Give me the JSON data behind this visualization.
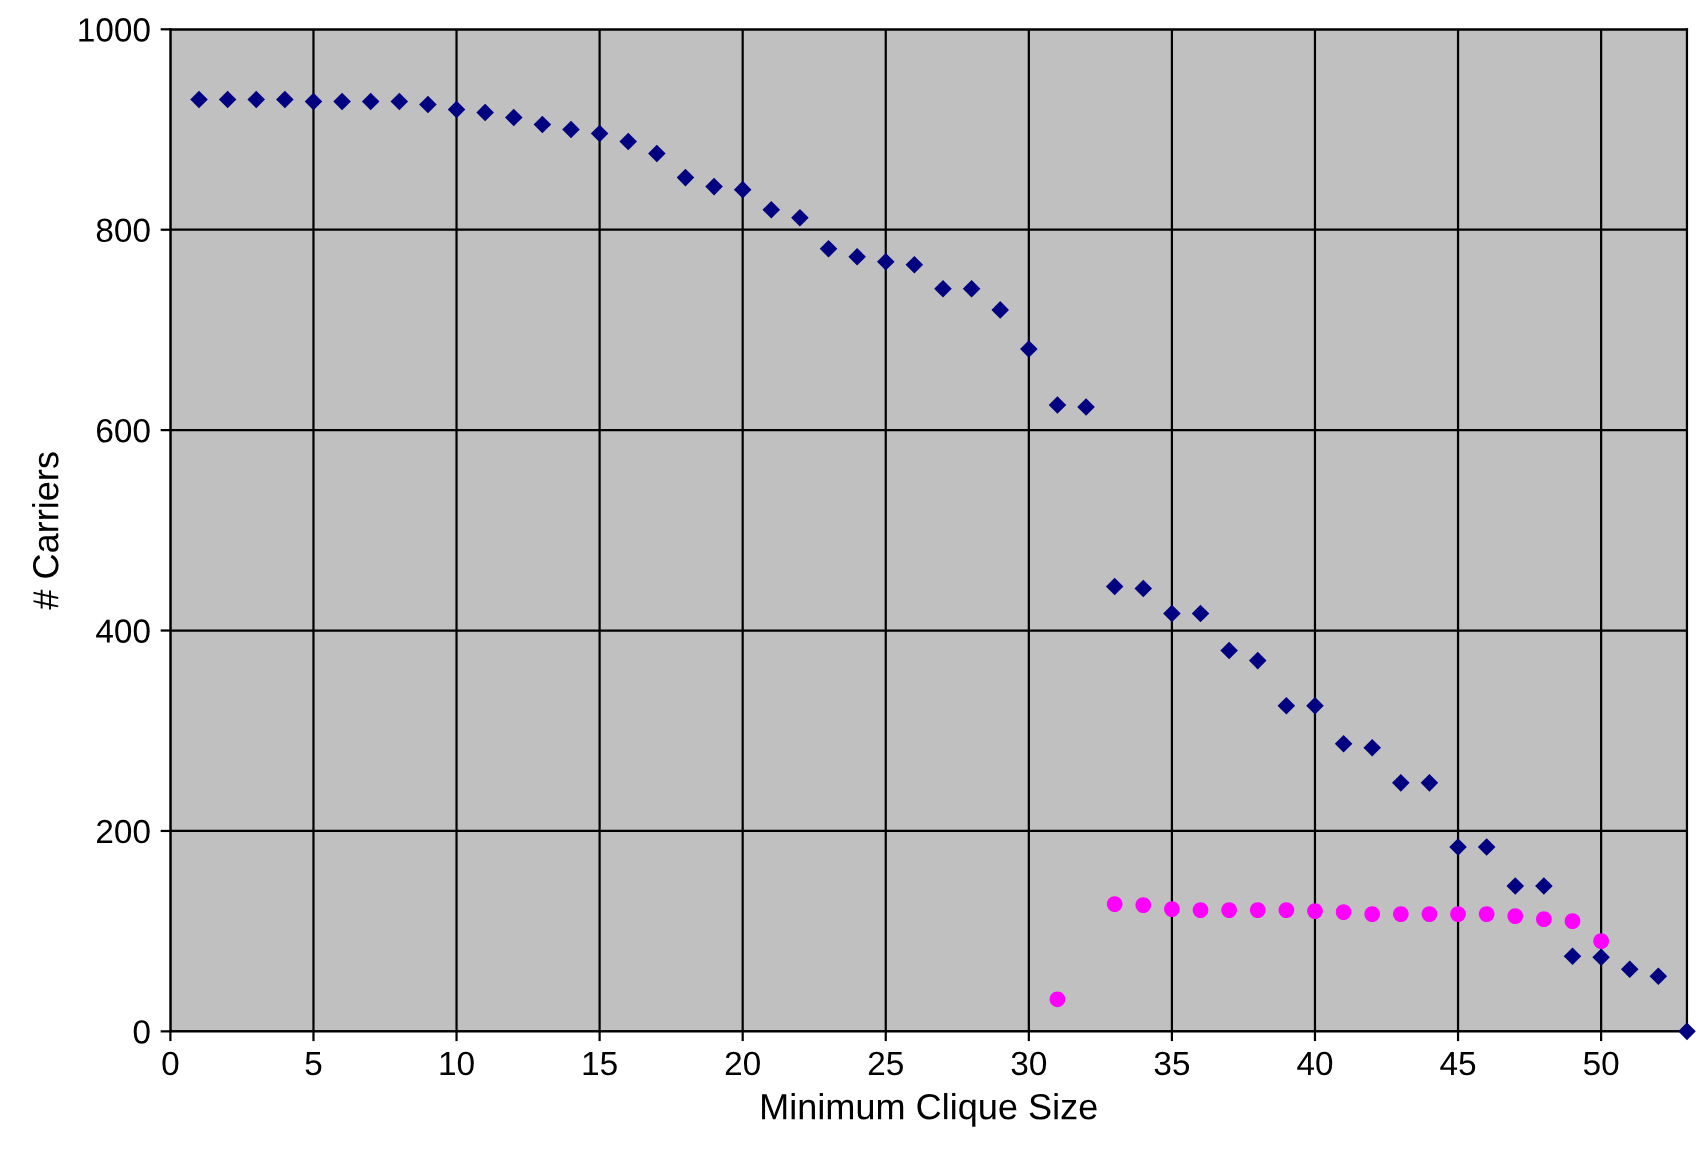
{
  "chart_data": {
    "type": "scatter",
    "xlabel": "Minimum Clique Size",
    "ylabel": "# Carriers",
    "xlim": [
      0,
      53
    ],
    "ylim": [
      0,
      1000
    ],
    "xticks": [
      0,
      5,
      10,
      15,
      20,
      25,
      30,
      35,
      40,
      45,
      50
    ],
    "yticks": [
      0,
      200,
      400,
      600,
      800,
      1000
    ],
    "grid": true,
    "series": [
      {
        "color": "#000080",
        "marker": "diamond",
        "x": [
          1,
          2,
          3,
          4,
          5,
          6,
          7,
          8,
          9,
          10,
          11,
          12,
          13,
          14,
          15,
          16,
          17,
          18,
          19,
          20,
          21,
          22,
          23,
          24,
          25,
          26,
          27,
          28,
          29,
          30,
          31,
          32,
          33,
          34,
          35,
          36,
          37,
          38,
          39,
          40,
          41,
          42,
          43,
          44,
          45,
          46,
          47,
          48,
          49,
          50,
          51,
          52,
          53
        ],
        "values": [
          930,
          930,
          930,
          930,
          928,
          928,
          928,
          928,
          925,
          920,
          917,
          912,
          905,
          900,
          896,
          888,
          876,
          852,
          843,
          840,
          820,
          812,
          781,
          773,
          768,
          765,
          741,
          741,
          720,
          681,
          625,
          623,
          444,
          442,
          417,
          417,
          380,
          370,
          325,
          325,
          287,
          283,
          248,
          248,
          184,
          184,
          145,
          145,
          75,
          74,
          62,
          55,
          0
        ]
      },
      {
        "color": "#ff00ff",
        "marker": "circle",
        "x": [
          31,
          33,
          34,
          35,
          36,
          37,
          38,
          39,
          40,
          41,
          42,
          43,
          44,
          45,
          46,
          47,
          48,
          49,
          50
        ],
        "values": [
          32,
          127,
          126,
          122,
          121,
          121,
          121,
          121,
          120,
          119,
          117,
          117,
          117,
          117,
          117,
          115,
          112,
          110,
          90
        ]
      }
    ]
  }
}
